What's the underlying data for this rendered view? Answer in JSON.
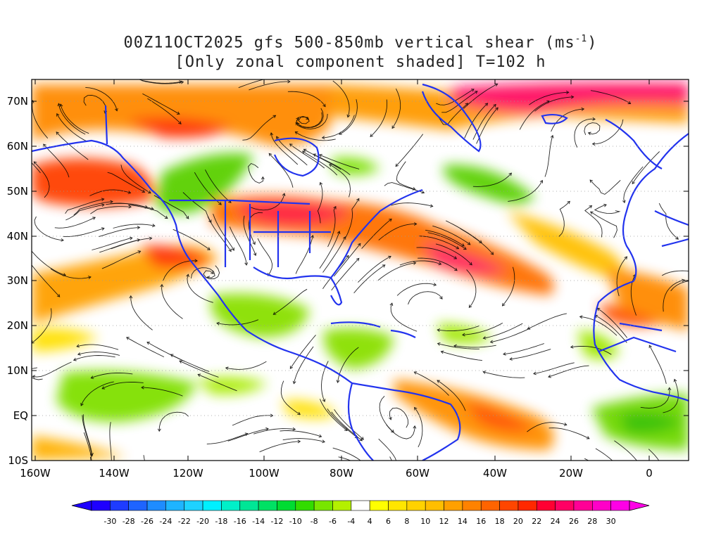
{
  "title": {
    "line1": "00Z11OCT2025 gfs 500-850mb vertical shear (ms",
    "line1_sup": "-1",
    "line1_end": ")",
    "line2": "[Only zonal component shaded] T=102 h"
  },
  "axes": {
    "lat_labels": [
      "70N",
      "60N",
      "50N",
      "40N",
      "30N",
      "20N",
      "10N",
      "EQ",
      "10S"
    ],
    "lon_labels": [
      "160W",
      "140W",
      "120W",
      "100W",
      "80W",
      "60W",
      "40W",
      "20W",
      "0"
    ]
  },
  "colorbar": {
    "labels": [
      "-30",
      "-28",
      "-26",
      "-24",
      "-22",
      "-20",
      "-18",
      "-16",
      "-14",
      "-12",
      "-10",
      "-8",
      "-6",
      "-4",
      "4",
      "6",
      "8",
      "10",
      "12",
      "14",
      "16",
      "18",
      "20",
      "22",
      "24",
      "26",
      "28",
      "30"
    ],
    "colors": [
      "#1e00ff",
      "#1e3cff",
      "#1e64ff",
      "#1e8cff",
      "#1eb4ff",
      "#1ed2ff",
      "#00f0ff",
      "#00f0c8",
      "#00e696",
      "#00e164",
      "#00dc32",
      "#32dc00",
      "#78e600",
      "#b4f000",
      "#ffffff",
      "#ffff00",
      "#ffe600",
      "#ffd200",
      "#ffbe00",
      "#ffa000",
      "#ff8200",
      "#ff6400",
      "#ff4600",
      "#ff2800",
      "#ff0032",
      "#ff0064",
      "#ff0096",
      "#ff00c8",
      "#ff00e6"
    ]
  },
  "colors": {
    "coastline": "#2233ee",
    "streamline": "#000000"
  }
}
